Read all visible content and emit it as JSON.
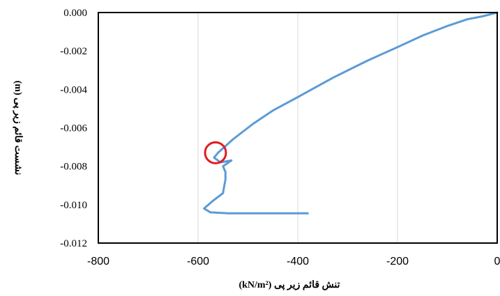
{
  "chart_data": {
    "type": "line",
    "title": "",
    "xlabel": "تنش قائم زیر پی (kN/m²)",
    "ylabel": "نشست قائم زیر پی (m)",
    "xlim": [
      -800,
      0
    ],
    "ylim": [
      -0.012,
      0.0
    ],
    "x_ticks": [
      -800,
      -600,
      -400,
      -200,
      0
    ],
    "x_tick_labels": [
      "-800",
      "-600",
      "-400",
      "-200",
      "0"
    ],
    "y_ticks": [
      0.0,
      -0.002,
      -0.004,
      -0.006,
      -0.008,
      -0.01,
      -0.012
    ],
    "y_tick_labels": [
      "0.000",
      "-0.002",
      "-0.004",
      "-0.006",
      "-0.008",
      "-0.010",
      "-0.012"
    ],
    "grid": "vertical",
    "legend": "none",
    "series": [
      {
        "color": "#5b9bd5",
        "points": [
          [
            0,
            0.0
          ],
          [
            -30,
            -0.0002
          ],
          [
            -60,
            -0.00035
          ],
          [
            -100,
            -0.0007
          ],
          [
            -150,
            -0.0012
          ],
          [
            -200,
            -0.0018
          ],
          [
            -260,
            -0.0025
          ],
          [
            -330,
            -0.0034
          ],
          [
            -400,
            -0.0044
          ],
          [
            -450,
            -0.0051
          ],
          [
            -490,
            -0.0058
          ],
          [
            -530,
            -0.0066
          ],
          [
            -560,
            -0.0073
          ],
          [
            -568,
            -0.00755
          ],
          [
            -555,
            -0.0078
          ],
          [
            -533,
            -0.0077
          ],
          [
            -550,
            -0.008
          ],
          [
            -545,
            -0.0083
          ],
          [
            -545,
            -0.0087
          ],
          [
            -548,
            -0.0091
          ],
          [
            -550,
            -0.0094
          ],
          [
            -570,
            -0.0098
          ],
          [
            -588,
            -0.0102
          ],
          [
            -575,
            -0.0104
          ],
          [
            -540,
            -0.01045
          ],
          [
            -480,
            -0.01045
          ],
          [
            -420,
            -0.01045
          ],
          [
            -380,
            -0.01045
          ]
        ]
      }
    ],
    "annotations": [
      {
        "type": "circle",
        "x": -565,
        "y": -0.0073,
        "color": "#e41a1c"
      }
    ]
  }
}
